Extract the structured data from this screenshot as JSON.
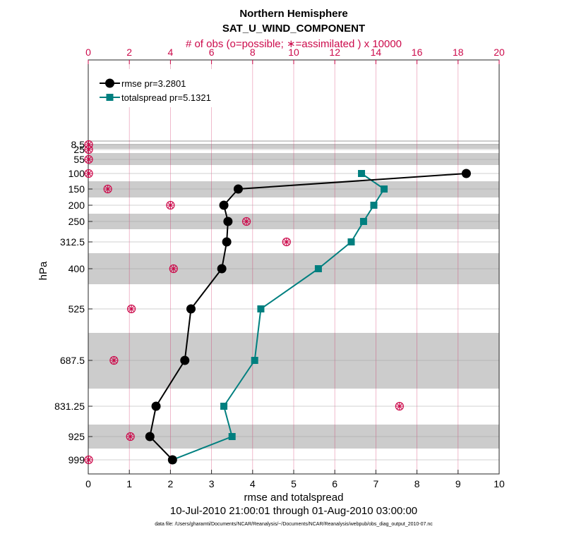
{
  "chart_data": {
    "type": "line",
    "title": "Northern Hemisphere",
    "subtitle": "SAT_U_WIND_COMPONENT",
    "top_axis_label": "# of obs (o=possible; ∗=assimilated ) x 10000",
    "xlabel": "rmse and totalspread",
    "ylabel": "hPa",
    "date_range": "10-Jul-2010 21:00:01 through 01-Aug-2010 03:00:00",
    "data_file": "data file: /Users/gharamti/Documents/NCAR/Reanalysis/~/Documents/NCAR/Reanalysis/webpub/obs_diag_output_2010-07.nc",
    "xlim": [
      0,
      10
    ],
    "top_xlim": [
      0,
      20
    ],
    "x_ticks": [
      "0",
      "1",
      "2",
      "3",
      "4",
      "5",
      "6",
      "7",
      "8",
      "9",
      "10"
    ],
    "top_x_ticks": [
      "0",
      "2",
      "4",
      "6",
      "8",
      "10",
      "12",
      "14",
      "16",
      "18",
      "20"
    ],
    "levels": [
      "8.5",
      "25",
      "55",
      "100",
      "150",
      "200",
      "250",
      "312.5",
      "400",
      "525",
      "687.5",
      "831.25",
      "925",
      "999"
    ],
    "series": [
      {
        "name": "rmse pr=3.2801",
        "color": "#000000",
        "marker": "circle",
        "levels": [
          "100",
          "150",
          "200",
          "250",
          "312.5",
          "400",
          "525",
          "687.5",
          "831.25",
          "925",
          "999"
        ],
        "values": [
          9.2,
          3.65,
          3.3,
          3.4,
          3.37,
          3.25,
          2.5,
          2.35,
          1.65,
          1.5,
          2.05
        ]
      },
      {
        "name": "totalspread pr=5.1321",
        "color": "#007f7f",
        "marker": "square",
        "levels": [
          "100",
          "150",
          "200",
          "250",
          "312.5",
          "400",
          "525",
          "687.5",
          "831.25",
          "925",
          "999"
        ],
        "values": [
          6.65,
          7.2,
          6.95,
          6.7,
          6.4,
          5.6,
          4.2,
          4.05,
          3.3,
          3.5,
          2.05
        ]
      }
    ],
    "obs_counts": {
      "color": "#cc0a4b",
      "levels": [
        "8.5",
        "25",
        "55",
        "100",
        "150",
        "200",
        "250",
        "312.5",
        "400",
        "525",
        "687.5",
        "831.25",
        "925",
        "999"
      ],
      "possible": [
        0.02,
        0.02,
        0.02,
        0.02,
        0.95,
        4.0,
        7.7,
        9.65,
        4.15,
        2.1,
        1.25,
        15.15,
        2.05,
        0.02
      ],
      "assimilated": [
        0.02,
        0.02,
        0.02,
        0.02,
        0.95,
        4.0,
        7.7,
        9.65,
        4.15,
        2.1,
        1.25,
        15.15,
        2.05,
        0.02
      ]
    }
  }
}
